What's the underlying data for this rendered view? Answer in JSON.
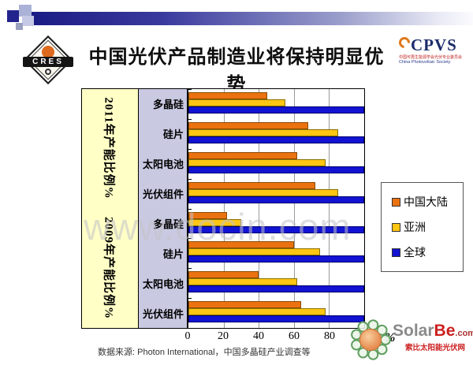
{
  "header": {
    "title": "中国光伏产品制造业将保持明显优势",
    "cres_label": "CRES",
    "cpvs": {
      "acronym": "CPVS",
      "cn_line": "中国可再生能源学会光伏专业委员会",
      "en_line": "China Photovoltaic Society"
    }
  },
  "chart_data": {
    "type": "bar",
    "orientation": "horizontal",
    "xlabel": "%",
    "xlim": [
      0,
      100
    ],
    "x_ticks": [
      0,
      20,
      40,
      60,
      80,
      100
    ],
    "grid": true,
    "legend_position": "right",
    "groups": [
      {
        "group_label": "2011年产能比例%",
        "categories": [
          "多晶硅",
          "硅片",
          "太阳电池",
          "光伏组件"
        ],
        "series": [
          {
            "name": "中国大陆",
            "color": "#EB7211",
            "border": "#8a4a00",
            "values": [
              45,
              68,
              62,
              72
            ]
          },
          {
            "name": "亚洲",
            "color": "#FFC613",
            "border": "#8a7000",
            "values": [
              55,
              85,
              78,
              85
            ]
          },
          {
            "name": "全球",
            "color": "#1212D2",
            "border": "#000070",
            "values": [
              100,
              100,
              100,
              100
            ]
          }
        ]
      },
      {
        "group_label": "2009年产能比例%",
        "categories": [
          "多晶硅",
          "硅片",
          "太阳电池",
          "光伏组件"
        ],
        "series": [
          {
            "name": "中国大陆",
            "color": "#EB7211",
            "border": "#8a4a00",
            "values": [
              22,
              60,
              40,
              64
            ]
          },
          {
            "name": "亚洲",
            "color": "#FFC613",
            "border": "#8a7000",
            "values": [
              30,
              75,
              62,
              78
            ]
          },
          {
            "name": "全球",
            "color": "#1212D2",
            "border": "#000070",
            "values": [
              100,
              100,
              100,
              100
            ]
          }
        ]
      }
    ],
    "legend": [
      {
        "label": "中国大陆",
        "color": "#EB7211"
      },
      {
        "label": "亚洲",
        "color": "#FFC613"
      },
      {
        "label": "全球",
        "color": "#1212D2"
      }
    ]
  },
  "footer": {
    "source": "数据来源: Photon International，中国多晶硅产业调查等"
  },
  "watermarks": {
    "docin": "www.docin.com",
    "solarbe": {
      "solar": "Solar",
      "be": "Be",
      "com": ".com",
      "cn": "索比太阳能光伏网"
    }
  }
}
